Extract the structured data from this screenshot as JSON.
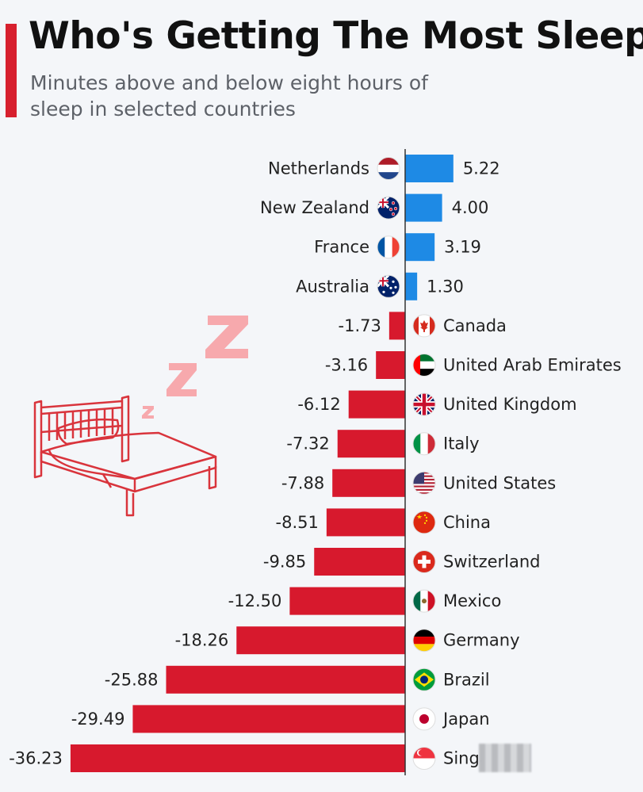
{
  "header": {
    "title": "Who's Getting The Most Sleep?",
    "subtitle": "Minutes above and below eight hours of sleep in selected countries"
  },
  "colors": {
    "positive": "#1e8ae5",
    "negative": "#d7192d",
    "accent": "#d7202e",
    "illustration": "#d9343c",
    "zzz": "#f7a9ad"
  },
  "chart_data": {
    "type": "bar",
    "orientation": "horizontal",
    "categories": [
      "Netherlands",
      "New Zealand",
      "France",
      "Australia",
      "Canada",
      "United Arab Emirates",
      "United Kingdom",
      "Italy",
      "United States",
      "China",
      "Switzerland",
      "Mexico",
      "Germany",
      "Brazil",
      "Japan",
      "Singa"
    ],
    "values": [
      5.22,
      4.0,
      3.19,
      1.3,
      -1.73,
      -3.16,
      -6.12,
      -7.32,
      -7.88,
      -8.51,
      -9.85,
      -12.5,
      -18.26,
      -25.88,
      -29.49,
      -36.23
    ],
    "value_labels": [
      "5.22",
      "4.00",
      "3.19",
      "1.30",
      "-1.73",
      "-3.16",
      "-6.12",
      "-7.32",
      "-7.88",
      "-8.51",
      "-9.85",
      "-12.50",
      "-18.26",
      "-25.88",
      "-29.49",
      "-36.23"
    ],
    "flags": [
      "netherlands-flag-icon",
      "new-zealand-flag-icon",
      "france-flag-icon",
      "australia-flag-icon",
      "canada-flag-icon",
      "uae-flag-icon",
      "united-kingdom-flag-icon",
      "italy-flag-icon",
      "united-states-flag-icon",
      "china-flag-icon",
      "switzerland-flag-icon",
      "mexico-flag-icon",
      "germany-flag-icon",
      "brazil-flag-icon",
      "japan-flag-icon",
      "singapore-flag-icon"
    ],
    "xlim": [
      -36.23,
      5.22
    ],
    "grid": false,
    "legend": "none",
    "illustration": "bed-with-zzz-icon"
  }
}
